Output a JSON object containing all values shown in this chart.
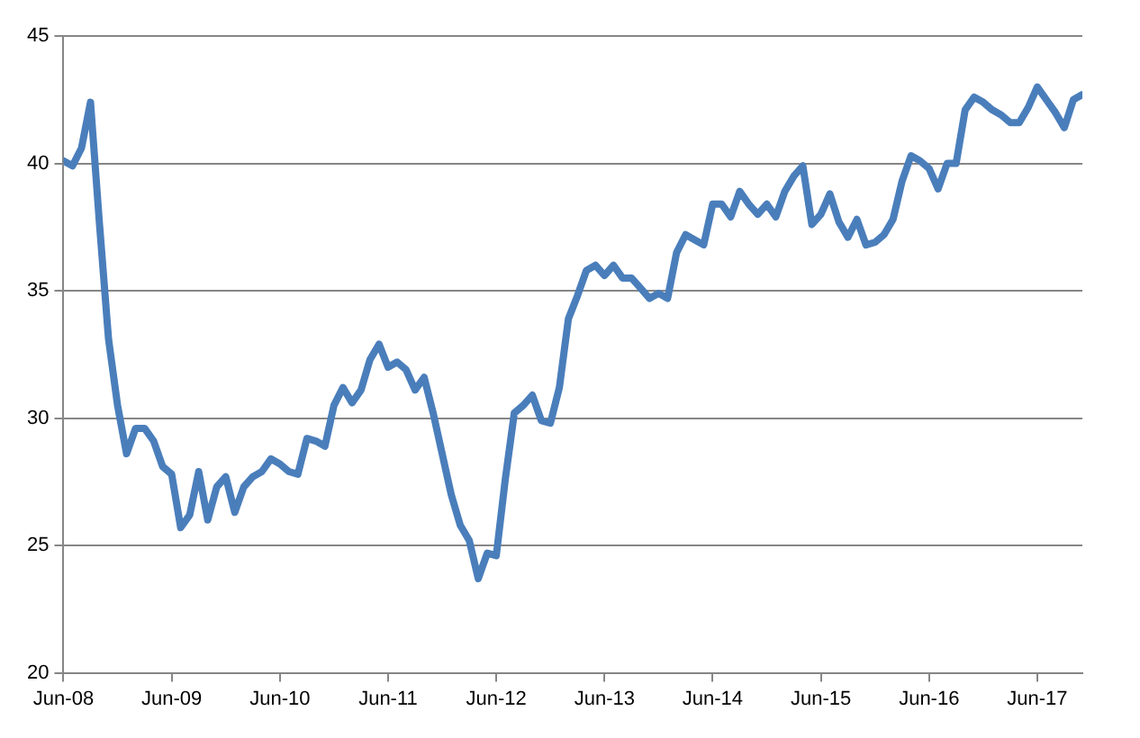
{
  "chart_data": {
    "type": "line",
    "x": [
      "2008-06",
      "2008-07",
      "2008-08",
      "2008-09",
      "2008-10",
      "2008-11",
      "2008-12",
      "2009-01",
      "2009-02",
      "2009-03",
      "2009-04",
      "2009-05",
      "2009-06",
      "2009-07",
      "2009-08",
      "2009-09",
      "2009-10",
      "2009-11",
      "2009-12",
      "2010-01",
      "2010-02",
      "2010-03",
      "2010-04",
      "2010-05",
      "2010-06",
      "2010-07",
      "2010-08",
      "2010-09",
      "2010-10",
      "2010-11",
      "2010-12",
      "2011-01",
      "2011-02",
      "2011-03",
      "2011-04",
      "2011-05",
      "2011-06",
      "2011-07",
      "2011-08",
      "2011-09",
      "2011-10",
      "2011-11",
      "2011-12",
      "2012-01",
      "2012-02",
      "2012-03",
      "2012-04",
      "2012-05",
      "2012-06",
      "2012-07",
      "2012-08",
      "2012-09",
      "2012-10",
      "2012-11",
      "2012-12",
      "2013-01",
      "2013-02",
      "2013-03",
      "2013-04",
      "2013-05",
      "2013-06",
      "2013-07",
      "2013-08",
      "2013-09",
      "2013-10",
      "2013-11",
      "2013-12",
      "2014-01",
      "2014-02",
      "2014-03",
      "2014-04",
      "2014-05",
      "2014-06",
      "2014-07",
      "2014-08",
      "2014-09",
      "2014-10",
      "2014-11",
      "2014-12",
      "2015-01",
      "2015-02",
      "2015-03",
      "2015-04",
      "2015-05",
      "2015-06",
      "2015-07",
      "2015-08",
      "2015-09",
      "2015-10",
      "2015-11",
      "2015-12",
      "2016-01",
      "2016-02",
      "2016-03",
      "2016-04",
      "2016-05",
      "2016-06",
      "2016-07",
      "2016-08",
      "2016-09",
      "2016-10",
      "2016-11",
      "2016-12",
      "2017-01",
      "2017-02",
      "2017-03",
      "2017-04",
      "2017-05",
      "2017-06",
      "2017-07",
      "2017-08",
      "2017-09",
      "2017-10",
      "2017-11"
    ],
    "series": [
      {
        "color": "#4a7ebb",
        "values": [
          40.1,
          39.9,
          40.6,
          42.4,
          37.6,
          33.1,
          30.5,
          28.6,
          29.6,
          29.6,
          29.1,
          28.1,
          27.8,
          25.7,
          26.2,
          27.9,
          26.0,
          27.3,
          27.7,
          26.3,
          27.3,
          27.7,
          27.9,
          28.4,
          28.2,
          27.9,
          27.8,
          29.2,
          29.1,
          28.9,
          30.5,
          31.2,
          30.6,
          31.1,
          32.3,
          32.9,
          32.0,
          32.2,
          31.9,
          31.1,
          31.6,
          30.2,
          28.6,
          27.0,
          25.8,
          25.2,
          23.7,
          24.7,
          24.6,
          27.6,
          30.2,
          30.5,
          30.9,
          29.9,
          29.8,
          31.2,
          33.9,
          34.8,
          35.8,
          36.0,
          35.6,
          36.0,
          35.5,
          35.5,
          35.1,
          34.7,
          34.9,
          34.7,
          36.5,
          37.2,
          37.0,
          36.8,
          38.4,
          38.4,
          37.9,
          38.9,
          38.4,
          38.0,
          38.4,
          37.9,
          38.9,
          39.5,
          39.9,
          37.6,
          38.0,
          38.8,
          37.7,
          37.1,
          37.8,
          36.8,
          36.9,
          37.2,
          37.8,
          39.3,
          40.3,
          40.1,
          39.8,
          39.0,
          40.0,
          40.0,
          42.1,
          42.6,
          42.4,
          42.1,
          41.9,
          41.6,
          41.6,
          42.2,
          43.0,
          42.5,
          42.0,
          41.4,
          42.5,
          42.7
        ]
      }
    ],
    "xlim": [
      "2008-06",
      "2017-11"
    ],
    "xticks": [
      {
        "value": "2008-06",
        "label": "Jun-08"
      },
      {
        "value": "2009-06",
        "label": "Jun-09"
      },
      {
        "value": "2010-06",
        "label": "Jun-10"
      },
      {
        "value": "2011-06",
        "label": "Jun-11"
      },
      {
        "value": "2012-06",
        "label": "Jun-12"
      },
      {
        "value": "2013-06",
        "label": "Jun-13"
      },
      {
        "value": "2014-06",
        "label": "Jun-14"
      },
      {
        "value": "2015-06",
        "label": "Jun-15"
      },
      {
        "value": "2016-06",
        "label": "Jun-16"
      },
      {
        "value": "2017-06",
        "label": "Jun-17"
      }
    ],
    "ylim": [
      20,
      45
    ],
    "yticks": [
      20,
      25,
      30,
      35,
      40,
      45
    ],
    "grid": "y",
    "legend": false,
    "marker": "none",
    "line_style": "solid"
  }
}
